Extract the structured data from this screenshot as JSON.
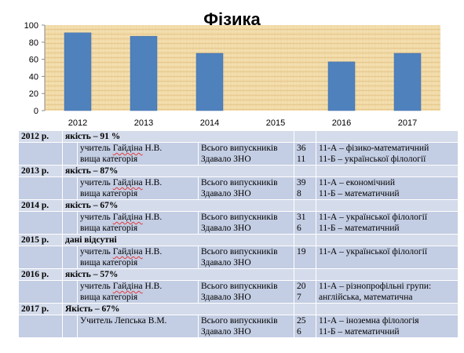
{
  "chart_data": {
    "type": "bar",
    "title": "Фізика",
    "categories": [
      "2012",
      "2013",
      "2014",
      "2015",
      "2016",
      "2017"
    ],
    "values": [
      91,
      87,
      67,
      null,
      57,
      67
    ],
    "ylim": [
      0,
      100
    ],
    "yticks": [
      "0",
      "20",
      "40",
      "60",
      "80",
      "100"
    ],
    "grid": false,
    "bar_color": "#4f81bd",
    "background": "papyrus"
  },
  "table": {
    "rows": [
      {
        "year": "2012 р.",
        "quality": "якість – 91 %",
        "teacher": "учитель Гайдіна Н.В.",
        "category": "вища категорія",
        "label1": "Всього випускників",
        "label2": "Здавало ЗНО",
        "n1": "36",
        "n2": "11",
        "class1": "11-А – фізико-математичний",
        "class2": "11-Б – української філології"
      },
      {
        "year": "2013 р.",
        "quality": "якість –  87%",
        "teacher": "учитель Гайдіна Н.В.",
        "category": "вища категорія",
        "label1": "Всього випускників",
        "label2": "Здавало ЗНО",
        "n1": "39",
        "n2": "8",
        "class1": "11-А – економічний",
        "class2": "11-Б – математичний"
      },
      {
        "year": "2014 р.",
        "quality": "якість – 67%",
        "teacher": "учитель Гайдіна Н.В.",
        "category": "вища категорія",
        "label1": "Всього випускників",
        "label2": "Здавало ЗНО",
        "n1": "31",
        "n2": "6",
        "class1": "11-А – української філології",
        "class2": "11-Б – математичний"
      },
      {
        "year": "2015 р.",
        "quality": "дані відсутні",
        "teacher": "учитель Гайдіна Н.В.",
        "category": "вища категорія",
        "label1": "Всього випускників",
        "label2": "Здавало ЗНО",
        "n1": "19",
        "n2": "",
        "class1": "11-А – української філології",
        "class2": ""
      },
      {
        "year": "2016 р.",
        "quality": "якість – 57%",
        "teacher": "учитель Гайдіна Н.В.",
        "category": "вища категорія",
        "label1": "Всього випускників",
        "label2": "Здавало ЗНО",
        "n1": "20",
        "n2": "7",
        "class1": "11-А – різнопрофільні групи:",
        "class2": "англійська, математична"
      },
      {
        "year": "2017 р.",
        "quality": "Якість – 67%",
        "teacher": "Учитель Лепська В.М.",
        "category": "",
        "label1": "Всього випускників",
        "label2": "Здавало ЗНО",
        "n1": "25",
        "n2": "6",
        "class1": "11-А – іноземна філологія",
        "class2": "11-Б – математичний"
      }
    ]
  }
}
